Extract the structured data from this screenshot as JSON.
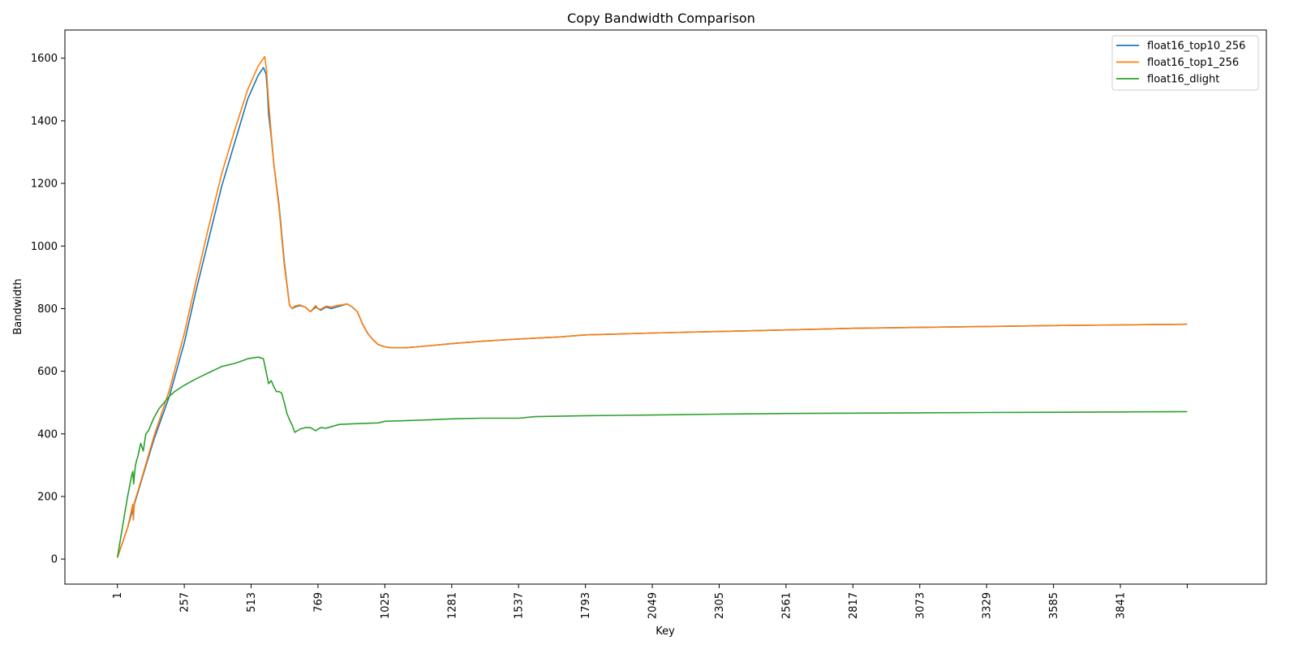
{
  "chart_data": {
    "type": "line",
    "title": "Copy Bandwidth Comparison",
    "xlabel": "Key",
    "ylabel": "Bandwidth",
    "xlim": [
      -200,
      4400
    ],
    "ylim": [
      -80,
      1690
    ],
    "x_ticks": [
      1,
      257,
      513,
      769,
      1025,
      1281,
      1537,
      1793,
      2049,
      2305,
      2561,
      2817,
      3073,
      3329,
      3585,
      3841,
      4097
    ],
    "x_tick_labels": [
      "1",
      "257",
      "513",
      "769",
      "1025",
      "1281",
      "1537",
      "1793",
      "2049",
      "2305",
      "2561",
      "2817",
      "3073",
      "3329",
      "3585",
      "3841",
      ""
    ],
    "y_ticks": [
      0,
      200,
      400,
      600,
      800,
      1000,
      1200,
      1400,
      1600
    ],
    "y_tick_labels": [
      "0",
      "200",
      "400",
      "600",
      "800",
      "1000",
      "1200",
      "1400",
      "1600"
    ],
    "grid": false,
    "legend_position": "top-right",
    "series": [
      {
        "name": "float16_top10_256",
        "color": "#1f77b4",
        "x": [
          1,
          40,
          60,
          62,
          66,
          100,
          140,
          200,
          257,
          300,
          350,
          400,
          450,
          500,
          540,
          560,
          570,
          575,
          580,
          590,
          600,
          620,
          640,
          660,
          670,
          680,
          700,
          720,
          740,
          760,
          769,
          780,
          800,
          820,
          840,
          860,
          880,
          900,
          920,
          940,
          960,
          980,
          1000,
          1025,
          1050,
          1100,
          1150,
          1200,
          1281,
          1400,
          1537,
          1700,
          1793,
          2049,
          2305,
          2561,
          2817,
          3073,
          3329,
          3585,
          3841,
          4097
        ],
        "y": [
          5,
          100,
          160,
          130,
          175,
          270,
          380,
          520,
          690,
          850,
          1020,
          1190,
          1330,
          1470,
          1545,
          1570,
          1550,
          1500,
          1420,
          1350,
          1260,
          1130,
          950,
          810,
          800,
          805,
          810,
          805,
          790,
          805,
          800,
          795,
          805,
          800,
          805,
          810,
          815,
          805,
          790,
          750,
          720,
          700,
          685,
          678,
          675,
          675,
          678,
          682,
          688,
          696,
          703,
          710,
          716,
          722,
          727,
          732,
          737,
          740,
          743,
          746,
          748,
          750
        ]
      },
      {
        "name": "float16_top1_256",
        "color": "#ff7f0e",
        "x": [
          1,
          40,
          60,
          62,
          66,
          100,
          140,
          200,
          257,
          300,
          350,
          400,
          450,
          500,
          540,
          565,
          572,
          578,
          590,
          600,
          620,
          640,
          660,
          670,
          680,
          700,
          720,
          740,
          760,
          769,
          780,
          800,
          820,
          840,
          860,
          880,
          900,
          920,
          940,
          960,
          980,
          1000,
          1025,
          1050,
          1100,
          1150,
          1200,
          1281,
          1400,
          1537,
          1700,
          1793,
          2049,
          2305,
          2561,
          2817,
          3073,
          3329,
          3585,
          3841,
          4097
        ],
        "y": [
          5,
          100,
          175,
          125,
          180,
          275,
          390,
          540,
          720,
          880,
          1060,
          1230,
          1370,
          1500,
          1575,
          1605,
          1560,
          1480,
          1360,
          1260,
          1120,
          940,
          810,
          800,
          808,
          812,
          805,
          790,
          810,
          800,
          798,
          808,
          805,
          810,
          812,
          815,
          805,
          790,
          750,
          720,
          700,
          685,
          678,
          675,
          675,
          678,
          682,
          688,
          696,
          703,
          710,
          716,
          722,
          727,
          732,
          737,
          740,
          743,
          746,
          748,
          750
        ]
      },
      {
        "name": "float16_dlight",
        "color": "#2ca02c",
        "x": [
          1,
          20,
          40,
          55,
          60,
          63,
          70,
          80,
          90,
          100,
          110,
          120,
          130,
          140,
          160,
          180,
          200,
          220,
          257,
          300,
          350,
          400,
          450,
          500,
          540,
          560,
          570,
          575,
          580,
          590,
          600,
          610,
          620,
          630,
          640,
          650,
          660,
          670,
          680,
          700,
          720,
          740,
          760,
          769,
          780,
          800,
          850,
          900,
          1000,
          1025,
          1100,
          1200,
          1281,
          1400,
          1537,
          1600,
          1793,
          2049,
          2305,
          2561,
          2817,
          3073,
          3329,
          3585,
          3841,
          4097
        ],
        "y": [
          5,
          100,
          200,
          265,
          280,
          240,
          300,
          330,
          370,
          345,
          400,
          410,
          430,
          450,
          480,
          500,
          520,
          535,
          555,
          575,
          595,
          615,
          625,
          640,
          645,
          640,
          600,
          580,
          560,
          570,
          550,
          535,
          535,
          530,
          500,
          465,
          445,
          428,
          405,
          415,
          420,
          420,
          410,
          415,
          420,
          418,
          430,
          432,
          435,
          440,
          442,
          445,
          448,
          450,
          450,
          455,
          458,
          460,
          463,
          465,
          466,
          467,
          468,
          469,
          470,
          471
        ]
      }
    ]
  }
}
